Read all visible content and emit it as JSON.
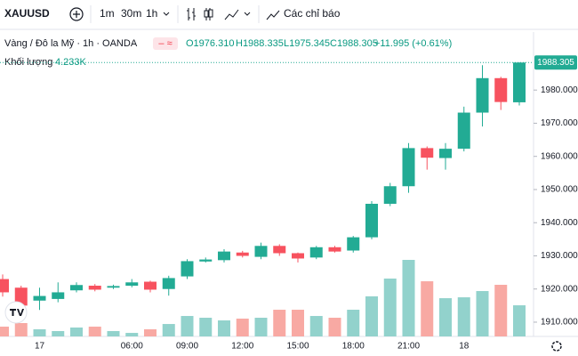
{
  "toolbar": {
    "symbol": "XAUUSD",
    "intervals": [
      "1m",
      "30m",
      "1h"
    ],
    "indicators": "Các chỉ báo"
  },
  "legend": {
    "title": "Vàng / Đô la Mỹ · 1h · OANDA",
    "ohlc": [
      "O1976.310",
      "H1988.335",
      "L1975.345",
      "C1988.305"
    ],
    "change": "+11.995 (+0.61%)",
    "volume_label": "Khối lượng",
    "volume_value": "4.233K"
  },
  "chart_data": {
    "type": "candlestick",
    "categories": [
      null,
      null,
      "17",
      null,
      null,
      null,
      null,
      "06:00",
      null,
      null,
      "09:00",
      null,
      null,
      "12:00",
      null,
      null,
      "15:00",
      null,
      null,
      "18:00",
      null,
      null,
      "21:00",
      null,
      null,
      "18",
      null,
      null,
      null
    ],
    "open": [
      1923,
      1920.4,
      1916.5,
      1917,
      1919.6,
      1921,
      1920.4,
      1921,
      1922.2,
      1920,
      1923.8,
      1928.3,
      1928.7,
      1931,
      1929.7,
      1933,
      1930.8,
      1929.5,
      1932.6,
      1931.6,
      1935.6,
      1945.7,
      1951,
      1962.5,
      1959.5,
      1962.3,
      1973.2,
      1983.6,
      1976.31
    ],
    "high": [
      1924.4,
      1921,
      1920.4,
      1922,
      1922,
      1921.5,
      1921.3,
      1923,
      1922.5,
      1924,
      1929,
      1929.5,
      1932,
      1931.5,
      1934,
      1933.5,
      1931,
      1933,
      1933,
      1936,
      1946.5,
      1952,
      1964,
      1963,
      1964,
      1975,
      1987.5,
      1984,
      1988.335
    ],
    "low": [
      1917.7,
      1913,
      1913.7,
      1916,
      1919,
      1919.3,
      1920,
      1920.5,
      1919,
      1918,
      1923,
      1928,
      1928,
      1929.5,
      1929,
      1930,
      1928,
      1929,
      1931,
      1931,
      1935,
      1945,
      1949,
      1956,
      1956,
      1961.5,
      1969,
      1974,
      1975.345
    ],
    "close": [
      1919,
      1915,
      1917.9,
      1919,
      1921.2,
      1919.8,
      1920.9,
      1922,
      1919.8,
      1923.3,
      1928.4,
      1928.9,
      1931.3,
      1930,
      1933,
      1930.8,
      1929.2,
      1932.6,
      1931.3,
      1935.6,
      1945.7,
      1951,
      1962.5,
      1959.6,
      1962.3,
      1973.2,
      1983.6,
      1976.4,
      1988.305
    ],
    "volume": [
      1330,
      1815,
      970,
      730,
      1210,
      1330,
      730,
      480,
      970,
      1690,
      2780,
      2540,
      2180,
      2420,
      2540,
      3630,
      3630,
      2780,
      2540,
      3630,
      5450,
      7870,
      10410,
      7500,
      5200,
      5320,
      6170,
      7020,
      4233
    ],
    "ylim": [
      1905.7,
      1997.5
    ],
    "yticks": [
      {
        "value": 1910,
        "label": "1910.000"
      },
      {
        "value": 1920,
        "label": "1920.000"
      },
      {
        "value": 1930,
        "label": "1930.000"
      },
      {
        "value": 1940,
        "label": "1940.000"
      },
      {
        "value": 1950,
        "label": "1950.000"
      },
      {
        "value": 1960,
        "label": "1960.000"
      },
      {
        "value": 1970,
        "label": "1970.000"
      },
      {
        "value": 1980,
        "label": "1980.000"
      }
    ],
    "up_color": "#22ab94",
    "down_color": "#f7525f",
    "up_volume_color": "#92d2cc",
    "down_volume_color": "#f8a9a3",
    "grid": false
  }
}
